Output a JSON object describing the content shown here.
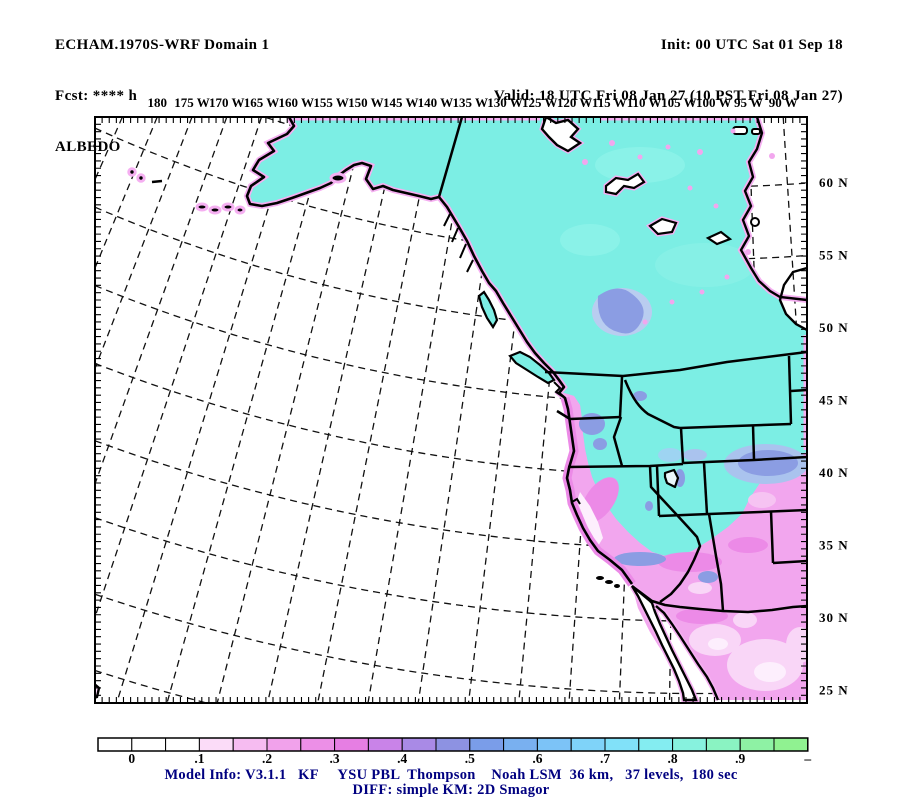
{
  "header": {
    "model_line": "ECHAM.1970S-WRF Domain 1",
    "fcst_line": "Fcst: **** h",
    "variable": "ALBEDO",
    "init_line": "Init: 00 UTC Sat 01 Sep 18",
    "valid_line": "Valid: 18 UTC Fri 08 Jan 27 (10 PST Fri 08 Jan 27)"
  },
  "map": {
    "lon_labels": [
      "180",
      "175 W",
      "170 W",
      "165 W",
      "160 W",
      "155 W",
      "150 W",
      "145 W",
      "140 W",
      "135 W",
      "130 W",
      "125 W",
      "120 W",
      "115 W",
      "110 W",
      "105 W",
      "100 W",
      "95 W",
      "90 W"
    ],
    "lat_labels": [
      "60 N",
      "55 N",
      "50 N",
      "45 N",
      "40 N",
      "35 N",
      "30 N",
      "25 N"
    ],
    "land_fill_cyan": "#7ceee4",
    "land_fill_pink": "#f2a6ee",
    "snow_patch_blue": "#8b9de3",
    "coast_halo_pink": "#f5aff1",
    "ocean_color": "#ffffff"
  },
  "colorbar": {
    "labels": [
      "0",
      ".1",
      ".2",
      ".3",
      ".4",
      ".5",
      ".6",
      ".7",
      ".8",
      ".9",
      "–"
    ],
    "segment_colors": [
      "#ffffff",
      "#ffffff",
      "#ffffff",
      "#fbdcf8",
      "#f6bcf1",
      "#f1a2eb",
      "#ec8fe7",
      "#e67ee3",
      "#c983e8",
      "#a98ae6",
      "#8d92e2",
      "#7a9de9",
      "#79b0f0",
      "#7cc3f7",
      "#7fd3f9",
      "#81e1f9",
      "#84edf1",
      "#87f2de",
      "#8af3c2",
      "#8ef2a4",
      "#90f291"
    ]
  },
  "footer": {
    "line1": "Model Info: V3.1.1   KF     YSU PBL  Thompson    Noah LSM  36 km,   37 levels,  180 sec",
    "line2": "DIFF: simple KM: 2D Smagor",
    "color": "#000080"
  },
  "chart_data": {
    "type": "heatmap",
    "variable": "ALBEDO",
    "projection": "lambert-conformal",
    "lon_range": [
      "180",
      "90 W"
    ],
    "lat_range": [
      "25 N",
      "60 N"
    ],
    "scale_levels": [
      0,
      0.05,
      0.1,
      0.15,
      0.2,
      0.25,
      0.3,
      0.35,
      0.4,
      0.45,
      0.5,
      0.55,
      0.6,
      0.65,
      0.7,
      0.75,
      0.8,
      0.85,
      0.9,
      0.95,
      1.0
    ],
    "palette": [
      "#ffffff",
      "#ffffff",
      "#ffffff",
      "#fbdcf8",
      "#f6bcf1",
      "#f1a2eb",
      "#ec8fe7",
      "#e67ee3",
      "#c983e8",
      "#a98ae6",
      "#8d92e2",
      "#7a9de9",
      "#79b0f0",
      "#7cc3f7",
      "#7fd3f9",
      "#81e1f9",
      "#84edf1",
      "#87f2de",
      "#8af3c2",
      "#8ef2a4",
      "#90f291"
    ],
    "regions_read_from_map": {
      "ocean_pacific": "no data (white)",
      "alaska_canada_nw_us": "about 0.8 (cyan)",
      "coastal_or_ca_sw_us_mexico": "about 0.2-0.3 (pink/magenta)",
      "mountain_patches": "about 0.5-0.6 (blue)"
    },
    "legend_position": "bottom",
    "grid": "dashed graticule on ocean"
  }
}
